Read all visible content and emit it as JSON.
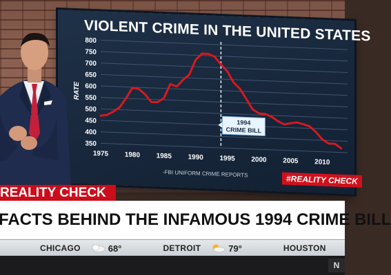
{
  "chart_data": {
    "type": "line",
    "title": "VIOLENT CRIME IN THE UNITED STATES",
    "ylabel": "RATE",
    "xlabel": "",
    "ylim": [
      350,
      800
    ],
    "xlim": [
      1975,
      2014
    ],
    "y_ticks": [
      "800",
      "750",
      "700",
      "650",
      "600",
      "550",
      "500",
      "450",
      "400",
      "350"
    ],
    "x_ticks": [
      "1975",
      "1980",
      "1985",
      "1990",
      "1995",
      "2000",
      "2005",
      "2010"
    ],
    "grid": true,
    "series": [
      {
        "color": "#d7191f",
        "x": [
          1975,
          1976,
          1977,
          1978,
          1979,
          1980,
          1981,
          1982,
          1983,
          1984,
          1985,
          1986,
          1987,
          1988,
          1989,
          1990,
          1991,
          1992,
          1993,
          1994,
          1995,
          1996,
          1997,
          1998,
          1999,
          2000,
          2001,
          2002,
          2003,
          2004,
          2005,
          2006,
          2007,
          2008,
          2009,
          2010,
          2011,
          2012,
          2013
        ],
        "values": [
          470,
          475,
          490,
          510,
          550,
          597,
          594,
          571,
          538,
          539,
          558,
          620,
          610,
          640,
          664,
          730,
          758,
          758,
          747,
          714,
          685,
          637,
          611,
          568,
          523,
          507,
          505,
          494,
          476,
          463,
          469,
          474,
          467,
          459,
          435,
          404,
          387,
          387,
          368
        ]
      }
    ],
    "annotations": [
      {
        "label_line1": "1994",
        "label_line2": "CRIME BILL",
        "x": 1994
      }
    ],
    "source": "-FBI UNIFORM CRIME REPORTS",
    "tag": "#REALITY CHECK"
  },
  "lower_third": {
    "label": "REALITY CHECK",
    "headline": "FACTS BEHIND THE INFAMOUS 1994 CRIME BILL"
  },
  "ticker": {
    "cities": [
      {
        "name": "CHICAGO",
        "temp": "68°",
        "icon": "partly-cloudy-icon"
      },
      {
        "name": "DETROIT",
        "temp": "79°",
        "icon": "partly-sunny-icon"
      },
      {
        "name": "HOUSTON",
        "temp": "",
        "icon": ""
      }
    ]
  },
  "colors": {
    "accent_red": "#cc0d1b",
    "screen_bg": "#1b2b40",
    "line_red": "#d7191f",
    "annotation_blue": "#e8f4ff"
  }
}
